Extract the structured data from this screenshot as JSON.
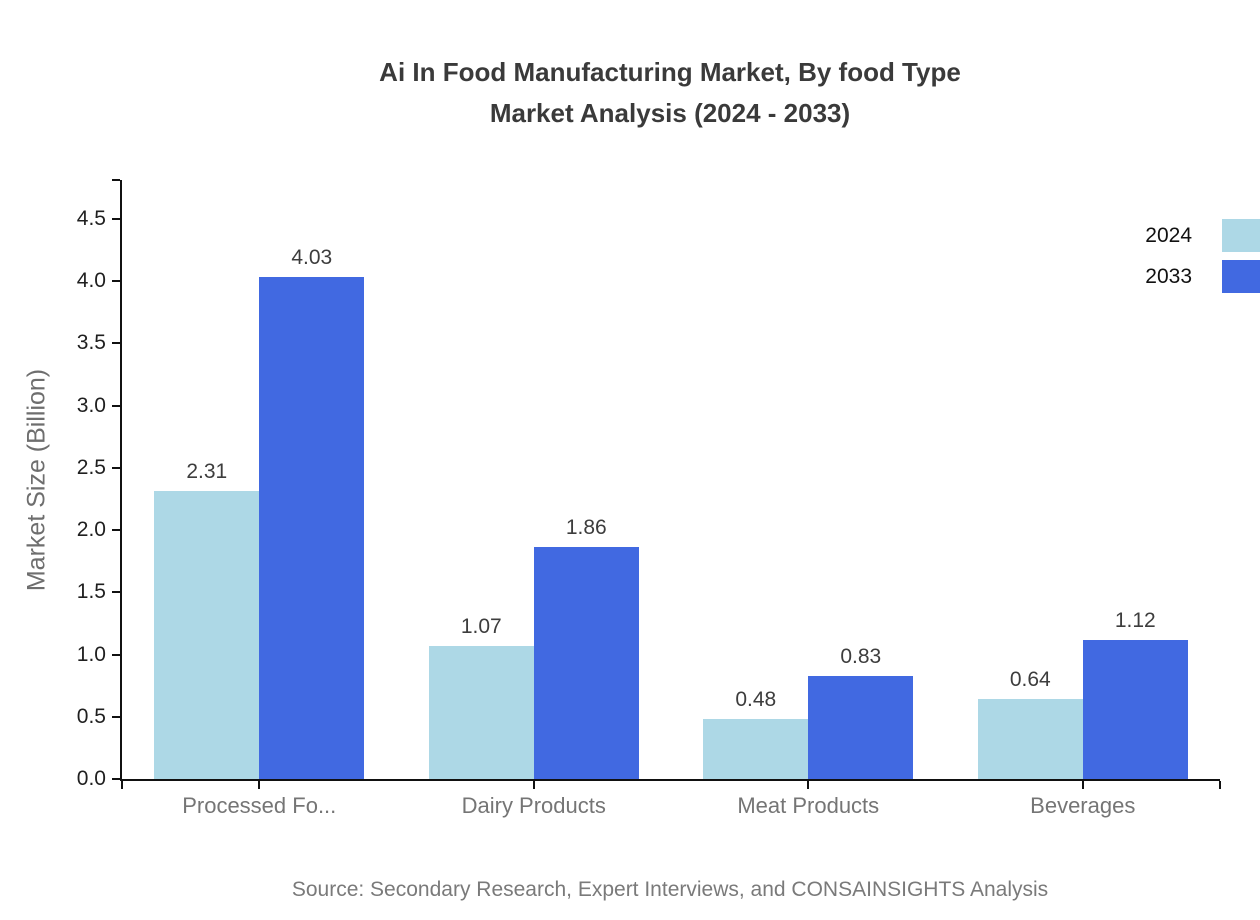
{
  "title": {
    "line1": "Ai In Food Manufacturing Market, By food Type",
    "line2": "Market Analysis (2024 - 2033)"
  },
  "source_text": "Source: Secondary Research, Expert Interviews, and CONSAINSIGHTS Analysis",
  "legend": {
    "position": "top-right",
    "items": [
      {
        "label": "2024",
        "color": "#ADD8E6"
      },
      {
        "label": "2033",
        "color": "#4169E1"
      }
    ]
  },
  "chart_data": {
    "type": "bar",
    "title": "Ai In Food Manufacturing Market, By food Type Market Analysis (2024 - 2033)",
    "categories": [
      "Processed Fo...",
      "Dairy Products",
      "Meat Products",
      "Beverages"
    ],
    "series": [
      {
        "name": "2024",
        "color": "#ADD8E6",
        "values": [
          2.31,
          1.07,
          0.48,
          0.64
        ]
      },
      {
        "name": "2033",
        "color": "#4169E1",
        "values": [
          4.03,
          1.86,
          0.83,
          1.12
        ]
      }
    ],
    "value_labels_shown": true,
    "xlabel": "",
    "ylabel": "Market Size (Billion)",
    "yticks": [
      0.0,
      0.5,
      1.0,
      1.5,
      2.0,
      2.5,
      3.0,
      3.5,
      4.0,
      4.5
    ],
    "ylim": [
      0,
      4.84
    ],
    "grid": false,
    "legend_position": "top-right",
    "bar_colors": {
      "2024": "#ADD8E6",
      "2033": "#4169E1"
    },
    "axis_color": "#111111",
    "background_color": "#ffffff"
  }
}
